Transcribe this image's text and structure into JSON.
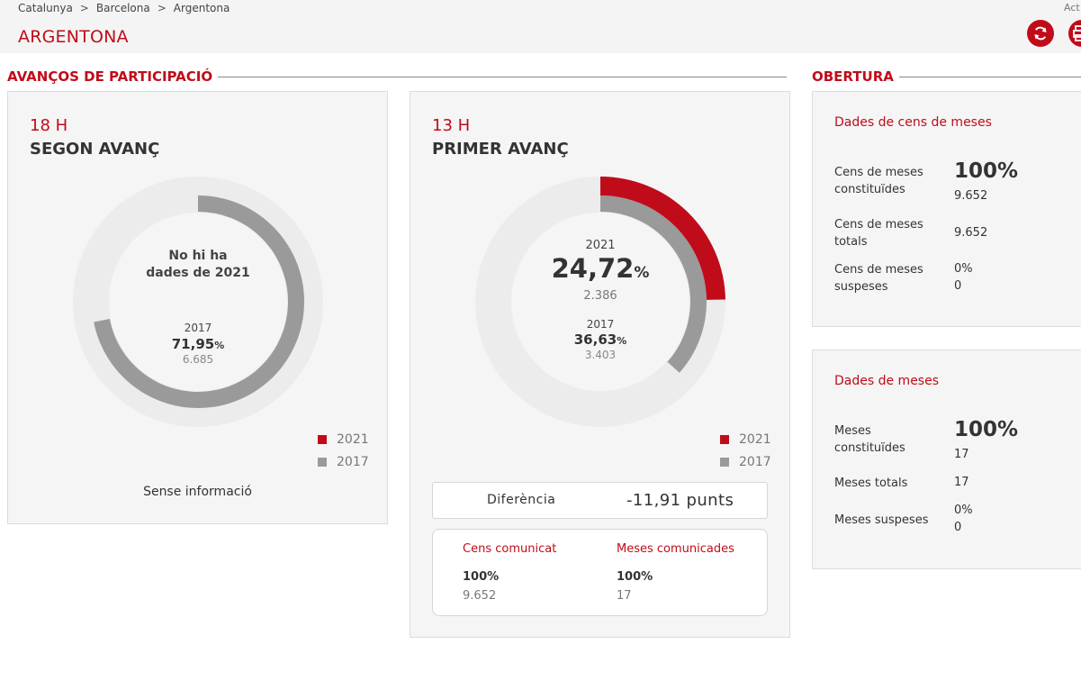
{
  "breadcrumb": {
    "items": [
      "Catalunya",
      "Barcelona",
      "Argentona"
    ],
    "separator": ">"
  },
  "top_right_label": "Act",
  "page_title": "ARGENTONA",
  "colors": {
    "accent": "#c00c1a",
    "series_2021": "#c00c1a",
    "series_2017": "#9a9a9a",
    "track": "#ececec"
  },
  "advances_section": {
    "title": "AVANÇOS DE PARTICIPACIÓ",
    "second": {
      "hour": "18 H",
      "title": "SEGON AVANÇ",
      "no_data": [
        "No hi ha",
        "dades de 2021"
      ],
      "year_2017": "2017",
      "pct_2017": "71,95",
      "pct_symbol": "%",
      "votes_2017": "6.685",
      "legend": [
        "2021",
        "2017"
      ],
      "footer": "Sense informació"
    },
    "first": {
      "hour": "13 H",
      "title": "PRIMER AVANÇ",
      "year_2021": "2021",
      "pct_2021": "24,72",
      "pct_symbol": "%",
      "votes_2021": "2.386",
      "year_2017": "2017",
      "pct_2017": "36,63",
      "votes_2017": "3.403",
      "legend": [
        "2021",
        "2017"
      ],
      "difference_label": "Diferència",
      "difference_value": "-11,91 punts",
      "census_label": "Cens comunicat",
      "census_pct": "100%",
      "census_value": "9.652",
      "tables_label": "Meses comunicades",
      "tables_pct": "100%",
      "tables_value": "17"
    }
  },
  "chart_data": [
    {
      "type": "donut",
      "title": "SEGON AVANÇ",
      "series": [
        {
          "name": "2021",
          "value": null
        },
        {
          "name": "2017",
          "value": 71.95
        }
      ],
      "max": 100
    },
    {
      "type": "donut",
      "title": "PRIMER AVANÇ",
      "series": [
        {
          "name": "2021",
          "value": 24.72
        },
        {
          "name": "2017",
          "value": 36.63
        }
      ],
      "max": 100
    }
  ],
  "opening_section": {
    "title": "OBERTURA",
    "census_card": {
      "title": "Dades de cens de meses",
      "constituted_label": [
        "Cens de meses",
        "constituïdes"
      ],
      "constituted_pct": "100%",
      "constituted_value": "9.652",
      "total_label": [
        "Cens de meses",
        "totals"
      ],
      "total_value": "9.652",
      "suspended_label": [
        "Cens de meses",
        "suspeses"
      ],
      "suspended_pct": "0%",
      "suspended_value": "0"
    },
    "tables_card": {
      "title": "Dades de meses",
      "constituted_label": [
        "Meses",
        "constituïdes"
      ],
      "constituted_pct": "100%",
      "constituted_value": "17",
      "total_label": "Meses totals",
      "total_value": "17",
      "suspended_label": "Meses suspeses",
      "suspended_pct": "0%",
      "suspended_value": "0"
    }
  }
}
